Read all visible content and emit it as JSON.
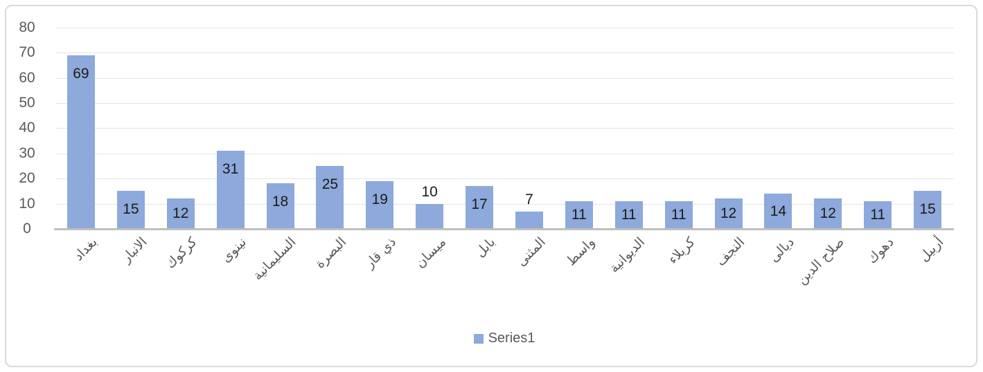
{
  "chart_data": {
    "type": "bar",
    "title": "",
    "xlabel": "",
    "ylabel": "",
    "categories": [
      "بغداد",
      "الانبار",
      "كركوك",
      "نينوى",
      "السليمانية",
      "البصرة",
      "ذي قار",
      "ميسان",
      "بابل",
      "المثنى",
      "واسط",
      "الديوانية",
      "كربلاء",
      "النجف",
      "ديالى",
      "صلاح الدين",
      "دهوك",
      "أربيل"
    ],
    "values": [
      69,
      15,
      12,
      31,
      18,
      25,
      19,
      10,
      17,
      7,
      11,
      11,
      11,
      12,
      14,
      12,
      11,
      15
    ],
    "series": [
      {
        "name": "Series1",
        "color": "#8EA9DB"
      }
    ],
    "ylim": [
      0,
      80
    ],
    "yticks": [
      0,
      10,
      20,
      30,
      40,
      50,
      60,
      70,
      80
    ],
    "grid": true,
    "legend_position": "bottom-center",
    "data_labels": "inside-end, outside-end for short bars (10 and 7)",
    "x_label_rotation_deg": 45
  },
  "colors": {
    "bar_fill": "#8EA9DB",
    "axis_text": "#595959",
    "value_label_text": "#1a1a1a",
    "gridline": "#e4e4e4",
    "axis_line": "#bfbfbf",
    "frame_border": "#d9d9d9",
    "background": "#ffffff"
  }
}
